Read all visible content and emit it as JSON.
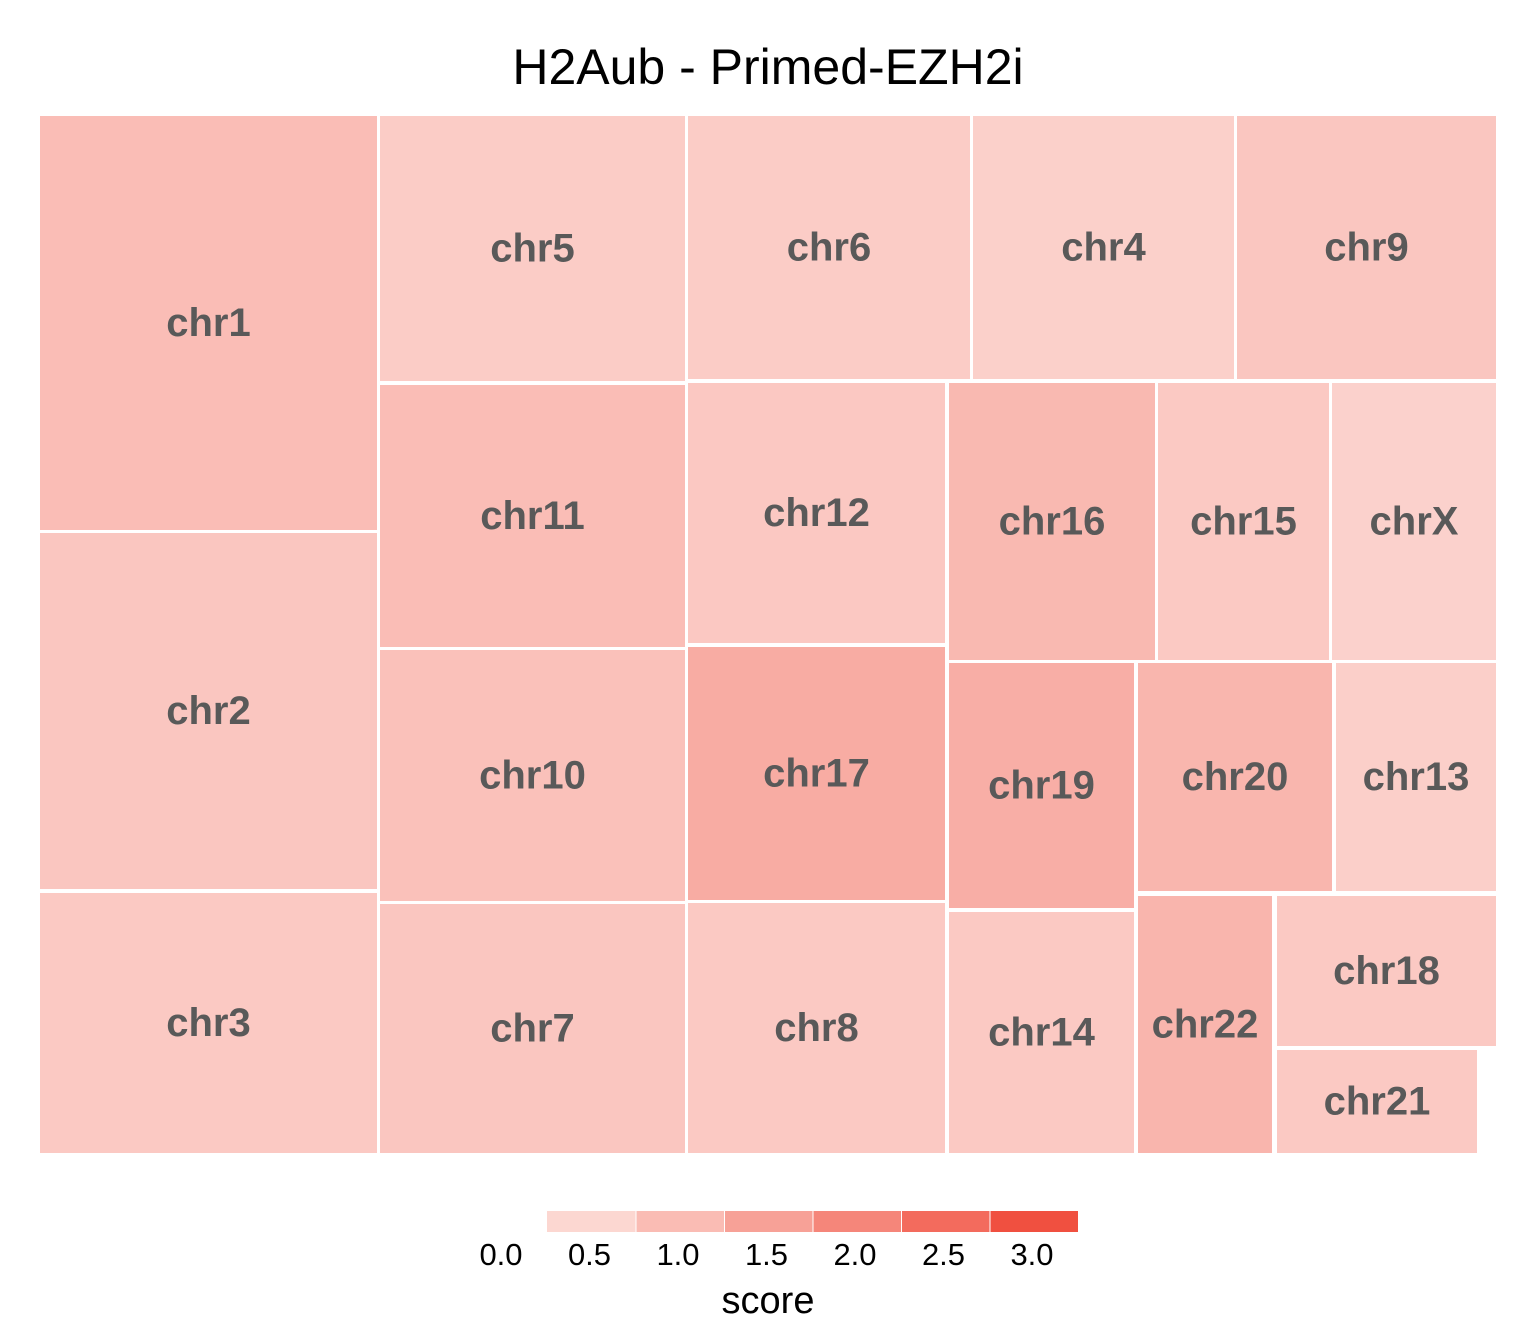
{
  "chart_data": {
    "type": "treemap",
    "title": "H2Aub - Primed-EZH2i",
    "tiles": [
      {
        "label": "chr1",
        "score": 0.72
      },
      {
        "label": "chr2",
        "score": 0.55
      },
      {
        "label": "chr3",
        "score": 0.5
      },
      {
        "label": "chr5",
        "score": 0.45
      },
      {
        "label": "chr6",
        "score": 0.45
      },
      {
        "label": "chr4",
        "score": 0.38
      },
      {
        "label": "chr9",
        "score": 0.55
      },
      {
        "label": "chr11",
        "score": 0.72
      },
      {
        "label": "chr12",
        "score": 0.52
      },
      {
        "label": "chr16",
        "score": 0.8
      },
      {
        "label": "chr15",
        "score": 0.5
      },
      {
        "label": "chrX",
        "score": 0.35
      },
      {
        "label": "chr10",
        "score": 0.65
      },
      {
        "label": "chr17",
        "score": 1.05
      },
      {
        "label": "chr19",
        "score": 1.0
      },
      {
        "label": "chr20",
        "score": 0.85
      },
      {
        "label": "chr13",
        "score": 0.4
      },
      {
        "label": "chr7",
        "score": 0.55
      },
      {
        "label": "chr8",
        "score": 0.5
      },
      {
        "label": "chr14",
        "score": 0.5
      },
      {
        "label": "chr22",
        "score": 0.88
      },
      {
        "label": "chr18",
        "score": 0.5
      },
      {
        "label": "chr21",
        "score": 0.5
      }
    ],
    "legend": {
      "title": "score",
      "ticks": [
        "0.0",
        "0.5",
        "1.0",
        "1.5",
        "2.0",
        "2.5",
        "3.0"
      ],
      "range": [
        0,
        3
      ],
      "low_color": "#fde4e0",
      "high_color": "#ef4331"
    }
  }
}
